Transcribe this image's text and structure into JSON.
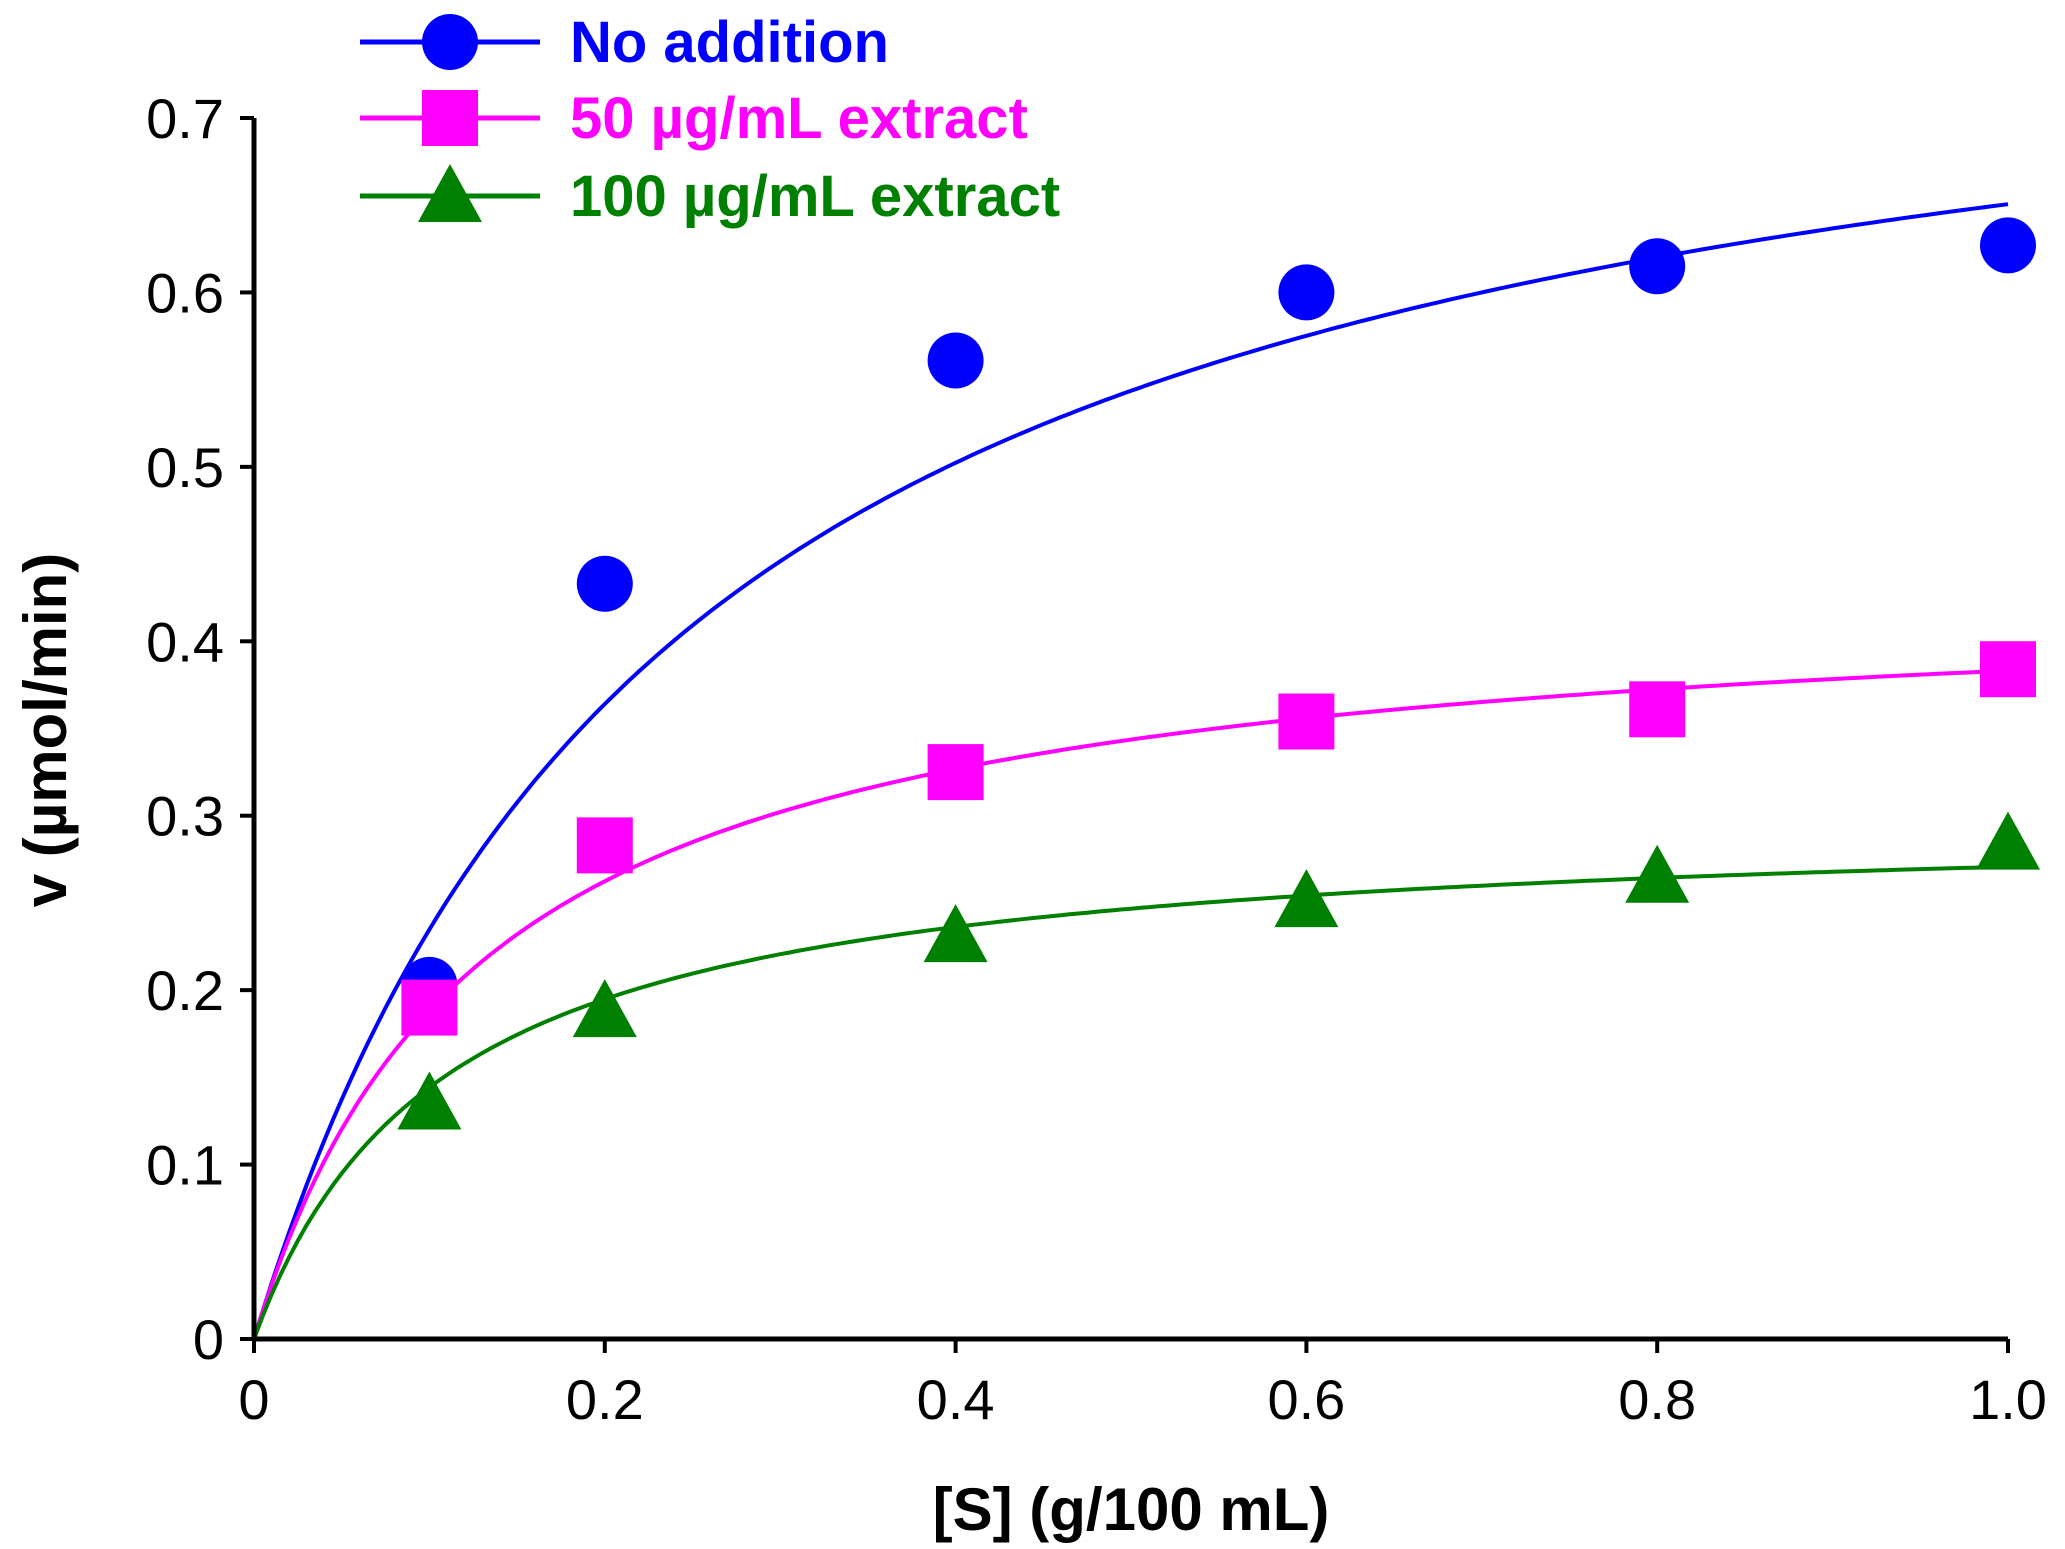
{
  "chart_data": {
    "type": "scatter",
    "title": "",
    "xlabel": "[S] (g/100 mL)",
    "ylabel": "v (µmol/min)",
    "xlim": [
      0,
      1.0
    ],
    "ylim": [
      0,
      0.7
    ],
    "x_ticks": [
      0,
      0.2,
      0.4,
      0.6,
      0.8,
      1.0
    ],
    "x_tick_labels": [
      "0",
      "0.2",
      "0.4",
      "0.6",
      "0.8",
      "1.0"
    ],
    "y_ticks": [
      0,
      0.1,
      0.2,
      0.3,
      0.4,
      0.5,
      0.6,
      0.7
    ],
    "y_tick_labels": [
      "0",
      "0.1",
      "0.2",
      "0.3",
      "0.4",
      "0.5",
      "0.6",
      "0.7"
    ],
    "grid": false,
    "legend_position": "top-left",
    "series": [
      {
        "name": "No addition",
        "color": "#0000ff",
        "marker": "circle",
        "x": [
          0.1,
          0.2,
          0.4,
          0.6,
          0.8,
          1.0
        ],
        "values": [
          0.203,
          0.433,
          0.561,
          0.6,
          0.615,
          0.627
        ],
        "fit": {
          "model": "michaelis-menten",
          "vmax": 0.81,
          "km": 0.245
        }
      },
      {
        "name": "50 µg/mL extract",
        "color": "#ff00ff",
        "marker": "square",
        "x": [
          0.1,
          0.2,
          0.4,
          0.6,
          0.8,
          1.0
        ],
        "values": [
          0.19,
          0.283,
          0.325,
          0.354,
          0.361,
          0.384
        ],
        "fit": {
          "model": "michaelis-menten",
          "vmax": 0.433,
          "km": 0.13
        }
      },
      {
        "name": "100 µg/mL extract",
        "color": "#008000",
        "marker": "triangle",
        "x": [
          0.1,
          0.2,
          0.4,
          0.6,
          0.8,
          1.0
        ],
        "values": [
          0.135,
          0.188,
          0.231,
          0.251,
          0.265,
          0.284
        ],
        "fit": {
          "model": "michaelis-menten",
          "vmax": 0.3,
          "km": 0.108
        }
      }
    ]
  }
}
